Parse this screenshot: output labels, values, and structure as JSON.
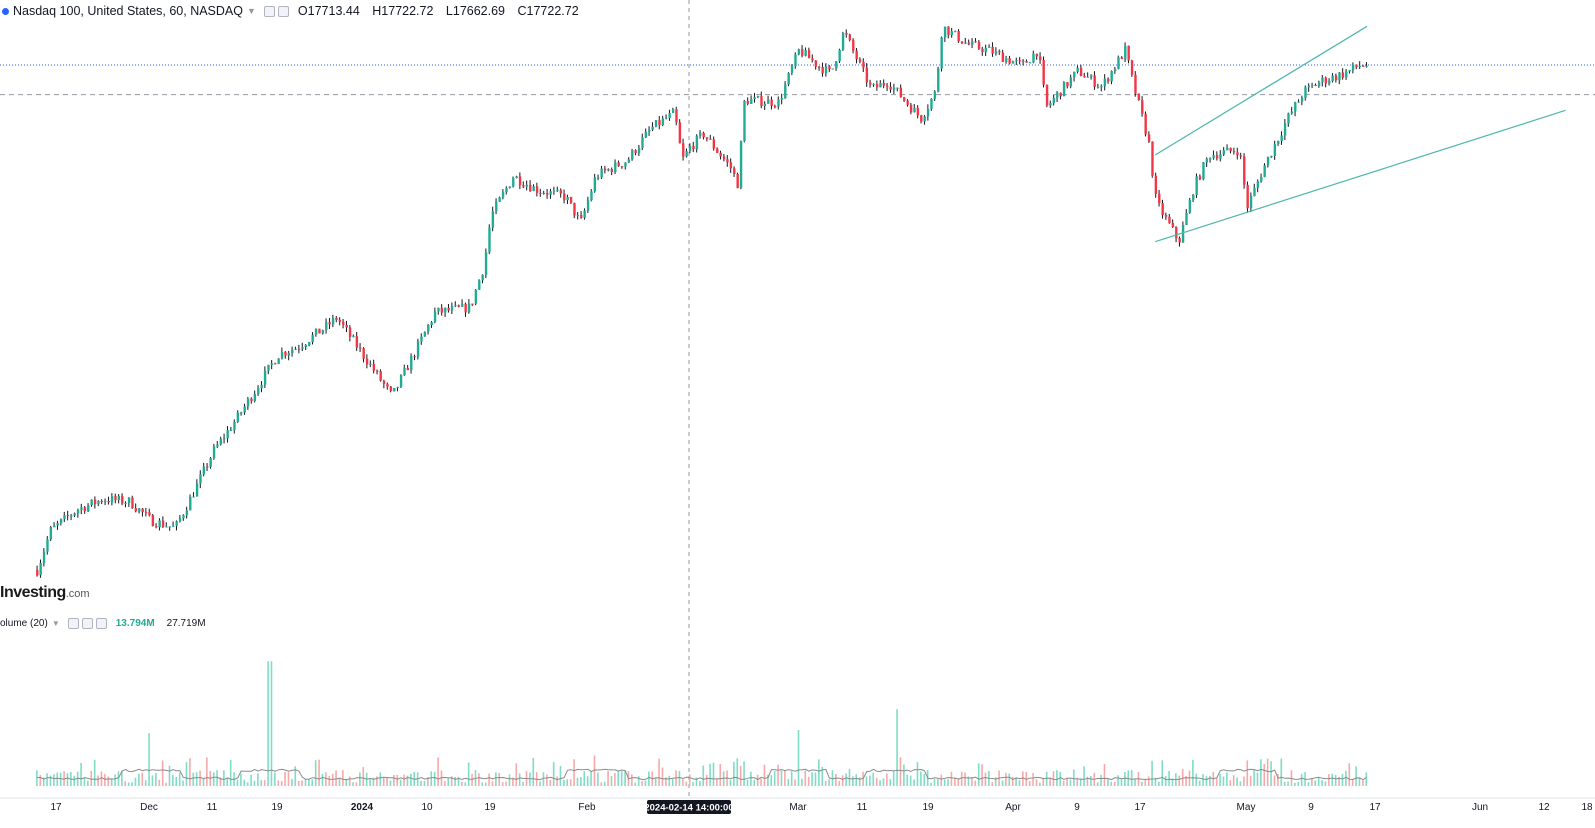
{
  "header": {
    "symbol": "Nasdaq 100, United States, 60, NASDAQ",
    "open": "O17713.44",
    "high": "H17722.72",
    "low": "L17662.69",
    "close": "C17722.72"
  },
  "brand": {
    "name": "Investing",
    "suffix": ".com"
  },
  "volume_legend": {
    "label": "olume (20)",
    "value1": "13.794M",
    "value2": "27.719M"
  },
  "crosshair_label": "2024-02-14 14:00:00",
  "colors": {
    "up": "#22ab94",
    "down": "#f23645",
    "wick": "#131722",
    "channel": "#4db6ac",
    "price_line": "#2962ff",
    "grid_dash": "#9598a1",
    "vol_up": "#7fdcc5",
    "vol_down": "#f7a9a9",
    "vol_ma": "#8a8a8a"
  },
  "chart_data": {
    "type": "candlestick",
    "title": "Nasdaq 100, United States, 60, NASDAQ",
    "x_ticks": [
      {
        "label": "17",
        "date": "2023-11-17"
      },
      {
        "label": "Dec",
        "date": "2023-12-01",
        "bold": false
      },
      {
        "label": "11",
        "date": "2023-12-11"
      },
      {
        "label": "19",
        "date": "2023-12-19"
      },
      {
        "label": "2024",
        "date": "2024-01-01",
        "bold": true
      },
      {
        "label": "10",
        "date": "2024-01-10"
      },
      {
        "label": "19",
        "date": "2024-01-19"
      },
      {
        "label": "Feb",
        "date": "2024-02-01"
      },
      {
        "label": "Mar",
        "date": "2024-03-01"
      },
      {
        "label": "11",
        "date": "2024-03-11"
      },
      {
        "label": "19",
        "date": "2024-03-19"
      },
      {
        "label": "Apr",
        "date": "2024-04-01"
      },
      {
        "label": "9",
        "date": "2024-04-09"
      },
      {
        "label": "17",
        "date": "2024-04-17"
      },
      {
        "label": "May",
        "date": "2024-05-01"
      },
      {
        "label": "9",
        "date": "2024-05-09"
      },
      {
        "label": "17",
        "date": "2024-05-17"
      },
      {
        "label": "Jun",
        "date": "2024-06-01"
      },
      {
        "label": "12",
        "date": "2024-06-12"
      },
      {
        "label": "18",
        "date": "2024-06-18"
      }
    ],
    "price_path": [
      [
        "2023-11-14",
        15800
      ],
      [
        "2023-11-16",
        15950
      ],
      [
        "2023-11-20",
        16030
      ],
      [
        "2023-11-24",
        16070
      ],
      [
        "2023-11-28",
        16060
      ],
      [
        "2023-12-01",
        15990
      ],
      [
        "2023-12-05",
        15960
      ],
      [
        "2023-12-08",
        16100
      ],
      [
        "2023-12-11",
        16250
      ],
      [
        "2023-12-14",
        16380
      ],
      [
        "2023-12-19",
        16620
      ],
      [
        "2023-12-22",
        16650
      ],
      [
        "2023-12-26",
        16720
      ],
      [
        "2023-12-28",
        16760
      ],
      [
        "2024-01-02",
        16580
      ],
      [
        "2024-01-05",
        16460
      ],
      [
        "2024-01-08",
        16620
      ],
      [
        "2024-01-11",
        16780
      ],
      [
        "2024-01-16",
        16800
      ],
      [
        "2024-01-18",
        16960
      ],
      [
        "2024-01-19",
        17150
      ],
      [
        "2024-01-22",
        17300
      ],
      [
        "2024-01-25",
        17250
      ],
      [
        "2024-01-29",
        17220
      ],
      [
        "2024-01-31",
        17120
      ],
      [
        "2024-02-02",
        17300
      ],
      [
        "2024-02-06",
        17360
      ],
      [
        "2024-02-09",
        17480
      ],
      [
        "2024-02-12",
        17540
      ],
      [
        "2024-02-13",
        17360
      ],
      [
        "2024-02-14",
        17410
      ],
      [
        "2024-02-16",
        17460
      ],
      [
        "2024-02-20",
        17330
      ],
      [
        "2024-02-21",
        17270
      ],
      [
        "2024-02-22",
        17590
      ],
      [
        "2024-02-27",
        17580
      ],
      [
        "2024-03-01",
        17780
      ],
      [
        "2024-03-04",
        17720
      ],
      [
        "2024-03-06",
        17690
      ],
      [
        "2024-03-08",
        17850
      ],
      [
        "2024-03-12",
        17630
      ],
      [
        "2024-03-14",
        17660
      ],
      [
        "2024-03-18",
        17520
      ],
      [
        "2024-03-20",
        17620
      ],
      [
        "2024-03-21",
        17870
      ],
      [
        "2024-03-25",
        17800
      ],
      [
        "2024-03-28",
        17780
      ],
      [
        "2024-04-02",
        17720
      ],
      [
        "2024-04-04",
        17780
      ],
      [
        "2024-04-05",
        17560
      ],
      [
        "2024-04-09",
        17700
      ],
      [
        "2024-04-12",
        17640
      ],
      [
        "2024-04-15",
        17780
      ],
      [
        "2024-04-16",
        17650
      ],
      [
        "2024-04-18",
        17430
      ],
      [
        "2024-04-19",
        17200
      ],
      [
        "2024-04-22",
        17050
      ],
      [
        "2024-04-24",
        17260
      ],
      [
        "2024-04-26",
        17380
      ],
      [
        "2024-04-30",
        17400
      ],
      [
        "2024-05-01",
        17180
      ],
      [
        "2024-05-03",
        17330
      ],
      [
        "2024-05-06",
        17520
      ],
      [
        "2024-05-08",
        17620
      ],
      [
        "2024-05-10",
        17660
      ],
      [
        "2024-05-13",
        17690
      ],
      [
        "2024-05-15",
        17722.72
      ]
    ],
    "volume_spikes": [
      [
        "2023-12-01",
        0.33
      ],
      [
        "2023-12-18",
        0.78
      ],
      [
        "2024-02-02",
        0.19
      ],
      [
        "2024-03-01",
        0.35
      ],
      [
        "2024-03-15",
        0.48
      ],
      [
        "2024-05-01",
        0.16
      ]
    ],
    "last_price": 17722.72,
    "horizontal_line": 17610,
    "crosshair_date": "2024-02-14",
    "trendlines": [
      {
        "from": [
          "2024-04-19",
          17380
        ],
        "to": [
          "2024-05-16",
          17870
        ]
      },
      {
        "from": [
          "2024-04-19",
          17050
        ],
        "to": [
          "2024-06-15",
          17550
        ]
      }
    ],
    "ylim": [
      15600,
      17950
    ]
  }
}
